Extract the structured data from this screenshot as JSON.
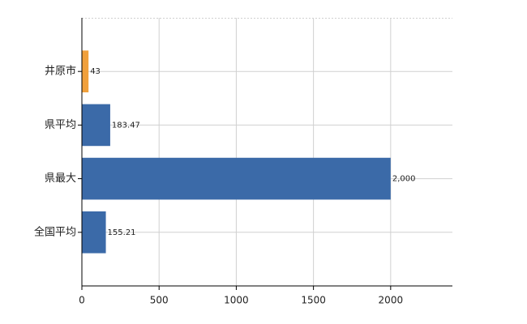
{
  "chart_data": {
    "type": "bar",
    "orientation": "horizontal",
    "categories": [
      "井原市",
      "県平均",
      "県最大",
      "全国平均"
    ],
    "values": [
      43,
      183.47,
      2000,
      155.21
    ],
    "value_labels": [
      "43",
      "183.47",
      "2,000",
      "155.21"
    ],
    "colors": [
      "#f0a03c",
      "#3b6aa8",
      "#3b6aa8",
      "#3b6aa8"
    ],
    "xlim": [
      0,
      2400
    ],
    "xticks": [
      0,
      500,
      1000,
      1500,
      2000
    ],
    "grid": true
  }
}
